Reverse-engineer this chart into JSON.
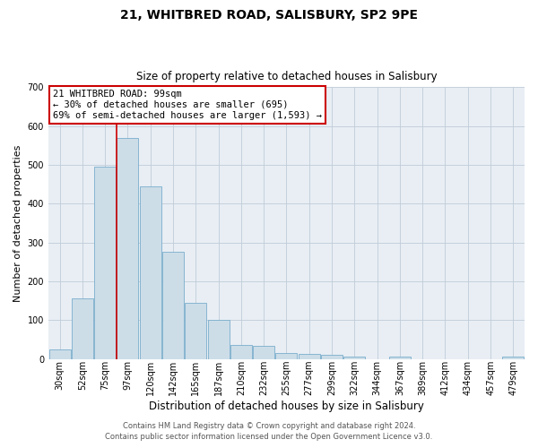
{
  "title": "21, WHITBRED ROAD, SALISBURY, SP2 9PE",
  "subtitle": "Size of property relative to detached houses in Salisbury",
  "xlabel": "Distribution of detached houses by size in Salisbury",
  "ylabel": "Number of detached properties",
  "bar_labels": [
    "30sqm",
    "52sqm",
    "75sqm",
    "97sqm",
    "120sqm",
    "142sqm",
    "165sqm",
    "187sqm",
    "210sqm",
    "232sqm",
    "255sqm",
    "277sqm",
    "299sqm",
    "322sqm",
    "344sqm",
    "367sqm",
    "389sqm",
    "412sqm",
    "434sqm",
    "457sqm",
    "479sqm"
  ],
  "bar_values": [
    25,
    155,
    495,
    570,
    445,
    275,
    145,
    100,
    35,
    33,
    15,
    13,
    10,
    5,
    0,
    7,
    0,
    0,
    0,
    0,
    5
  ],
  "bar_color": "#ccdde8",
  "bar_edge_color": "#7aadcc",
  "vline_x_index": 3,
  "vline_color": "#cc0000",
  "annotation_title": "21 WHITBRED ROAD: 99sqm",
  "annotation_line1": "← 30% of detached houses are smaller (695)",
  "annotation_line2": "69% of semi-detached houses are larger (1,593) →",
  "annotation_box_facecolor": "#ffffff",
  "annotation_box_edgecolor": "#cc0000",
  "ylim": [
    0,
    700
  ],
  "yticks": [
    0,
    100,
    200,
    300,
    400,
    500,
    600,
    700
  ],
  "footer1": "Contains HM Land Registry data © Crown copyright and database right 2024.",
  "footer2": "Contains public sector information licensed under the Open Government Licence v3.0.",
  "bg_color": "#ffffff",
  "plot_bg_color": "#e8eef4",
  "grid_color": "#c0ccd8",
  "title_fontsize": 10,
  "subtitle_fontsize": 8.5,
  "ylabel_fontsize": 8,
  "xlabel_fontsize": 8.5,
  "tick_fontsize": 7,
  "footer_fontsize": 6,
  "annot_fontsize": 7.5
}
